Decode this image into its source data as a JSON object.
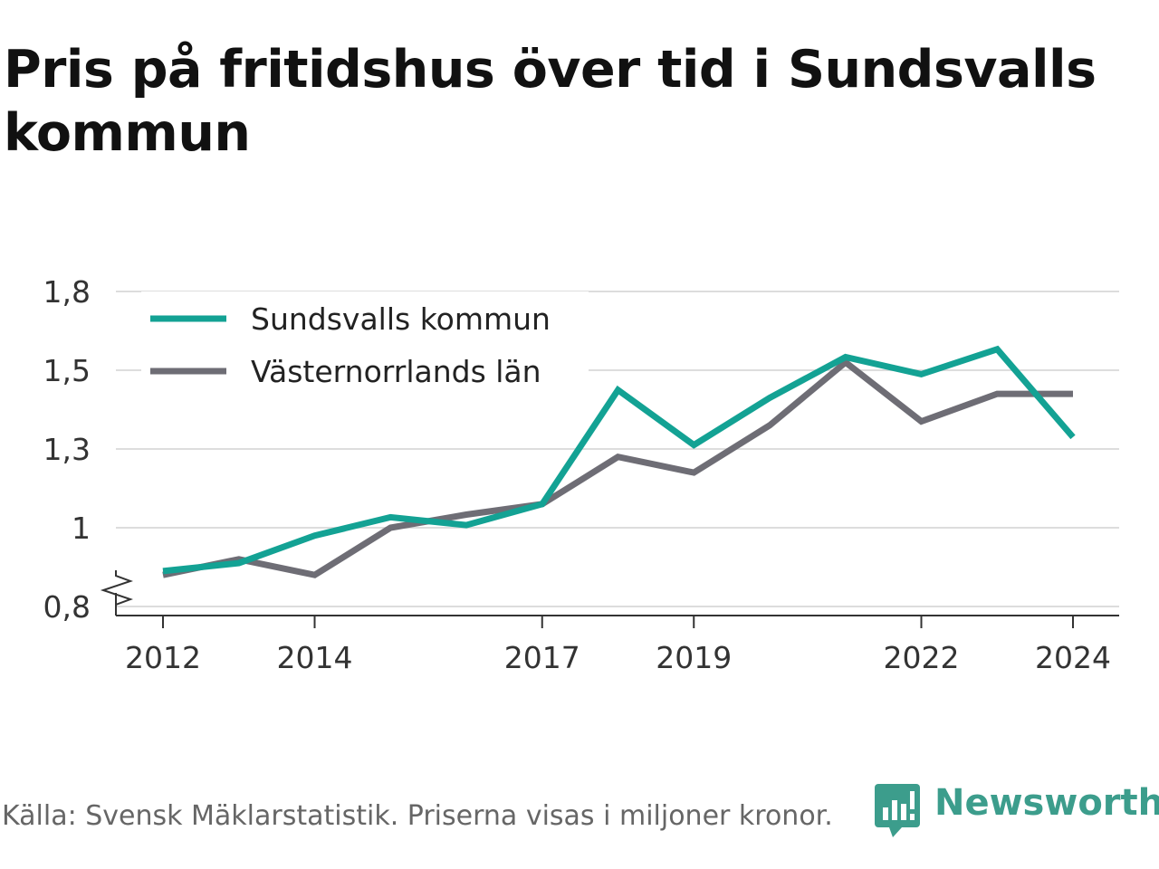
{
  "title": "Pris på fritidshus över tid i Sundsvalls kommun",
  "footer": {
    "source": "Källa: Svensk Mäklarstatistik. Priserna visas i miljoner kronor.",
    "brand": "Newsworthy"
  },
  "colors": {
    "sundsvall": "#13a294",
    "lan": "#6e6d75",
    "brand": "#3c9d8c"
  },
  "chart_data": {
    "type": "line",
    "x": [
      2012,
      2013,
      2014,
      2015,
      2016,
      2017,
      2018,
      2019,
      2020,
      2021,
      2022,
      2023,
      2024
    ],
    "x_tick_values": [
      2012,
      2014,
      2017,
      2019,
      2022,
      2024
    ],
    "x_tick_labels": [
      "2012",
      "2014",
      "2017",
      "2019",
      "2022",
      "2024"
    ],
    "y_tick_values": [
      0.8,
      1.0,
      1.3,
      1.5,
      1.8
    ],
    "y_tick_labels": [
      "0,8",
      "1",
      "1,3",
      "1,5",
      "1,8"
    ],
    "ylim": [
      0.8,
      1.8
    ],
    "y_axis_break": true,
    "grid": true,
    "legend": "top-left",
    "series": [
      {
        "name": "Sundsvalls kommun",
        "color": "#13a294",
        "values": [
          0.89,
          0.91,
          0.98,
          1.04,
          1.01,
          1.09,
          1.45,
          1.31,
          1.43,
          1.55,
          1.49,
          1.58,
          1.33
        ]
      },
      {
        "name": "Västernorrlands län",
        "color": "#6e6d75",
        "values": [
          0.88,
          0.92,
          0.88,
          1.0,
          1.05,
          1.09,
          1.27,
          1.21,
          1.36,
          1.53,
          1.37,
          1.44,
          1.44
        ]
      }
    ]
  }
}
